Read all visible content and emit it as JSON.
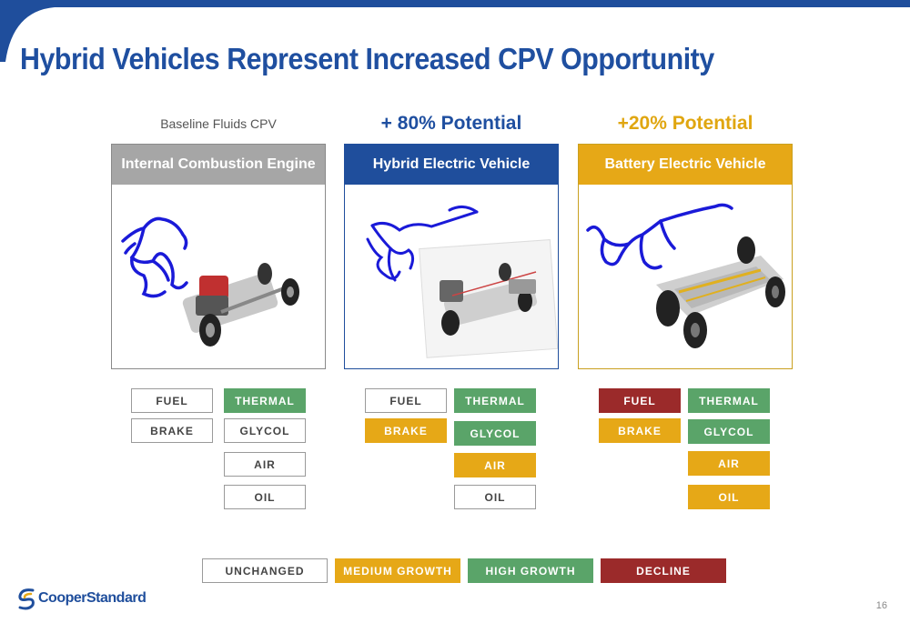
{
  "title": "Hybrid Vehicles Represent Increased CPV Opportunity",
  "columns": [
    {
      "header": "Baseline Fluids CPV",
      "panel_title": "Internal Combustion Engine",
      "chips": [
        "FUEL",
        "BRAKE",
        "THERMAL",
        "GLYCOL",
        "AIR",
        "OIL"
      ]
    },
    {
      "header": "+ 80% Potential",
      "panel_title": "Hybrid Electric Vehicle",
      "chips": [
        "FUEL",
        "BRAKE",
        "THERMAL",
        "GLYCOL",
        "AIR",
        "OIL"
      ]
    },
    {
      "header": "+20% Potential",
      "panel_title": "Battery Electric Vehicle",
      "chips": [
        "FUEL",
        "BRAKE",
        "THERMAL",
        "GLYCOL",
        "AIR",
        "OIL"
      ]
    }
  ],
  "legend": [
    "UNCHANGED",
    "MEDIUM GROWTH",
    "HIGH GROWTH",
    "DECLINE"
  ],
  "colors": {
    "brand_blue": "#1f4e9c",
    "unchanged": "#ffffff",
    "medium_growth": "#e6a817",
    "high_growth": "#5aa469",
    "decline": "#9b2a2a",
    "ice_header": "#a6a6a6"
  },
  "logo": "CooperStandard",
  "page_number": "16"
}
